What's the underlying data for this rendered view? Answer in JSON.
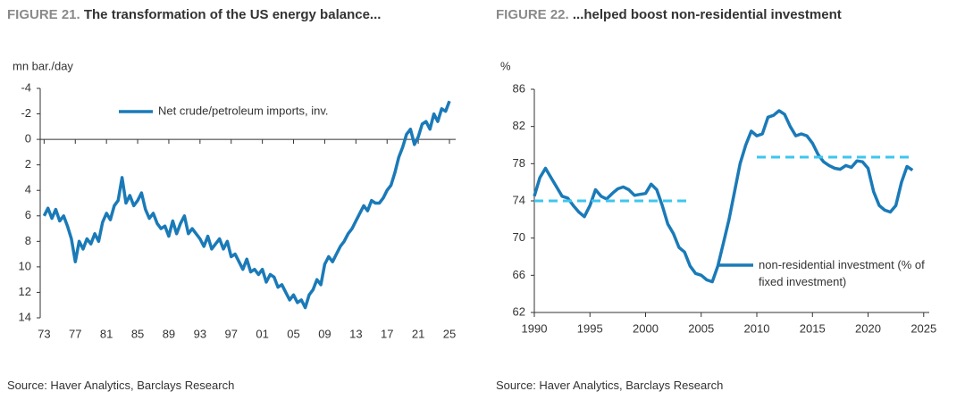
{
  "chart_data": [
    {
      "type": "line",
      "figure_label": "FIGURE 21.",
      "title": "The transformation of the US energy balance...",
      "y_label": "mn bar./day",
      "source": "Source: Haver Analytics, Barclays Research",
      "inverted": true,
      "legend": "upper-left",
      "xlim": [
        1972.5,
        2025.8
      ],
      "xticks": [
        {
          "value": 1973,
          "label": "73"
        },
        {
          "value": 1977,
          "label": "77"
        },
        {
          "value": 1981,
          "label": "81"
        },
        {
          "value": 1985,
          "label": "85"
        },
        {
          "value": 1989,
          "label": "89"
        },
        {
          "value": 1993,
          "label": "93"
        },
        {
          "value": 1997,
          "label": "97"
        },
        {
          "value": 2001,
          "label": "01"
        },
        {
          "value": 2005,
          "label": "05"
        },
        {
          "value": 2009,
          "label": "09"
        },
        {
          "value": 2013,
          "label": "13"
        },
        {
          "value": 2017,
          "label": "17"
        },
        {
          "value": 2021,
          "label": "21"
        },
        {
          "value": 2025,
          "label": "25"
        }
      ],
      "ylim": [
        -4,
        14
      ],
      "yticks": [
        -4,
        -2,
        0,
        2,
        4,
        6,
        8,
        10,
        12,
        14
      ],
      "series": [
        {
          "name": "Net crude/petroleum imports, inv.",
          "color": "#1a7ab8",
          "dash": false,
          "x": [
            1973,
            1973.5,
            1974,
            1974.5,
            1975,
            1975.5,
            1976,
            1976.5,
            1977,
            1977.5,
            1978,
            1978.5,
            1979,
            1979.5,
            1980,
            1980.5,
            1981,
            1981.5,
            1982,
            1982.5,
            1983,
            1983.5,
            1984,
            1984.5,
            1985,
            1985.5,
            1986,
            1986.5,
            1987,
            1987.5,
            1988,
            1988.5,
            1989,
            1989.5,
            1990,
            1990.5,
            1991,
            1991.5,
            1992,
            1992.5,
            1993,
            1993.5,
            1994,
            1994.5,
            1995,
            1995.5,
            1996,
            1996.5,
            1997,
            1997.5,
            1998,
            1998.5,
            1999,
            1999.5,
            2000,
            2000.5,
            2001,
            2001.5,
            2002,
            2002.5,
            2003,
            2003.5,
            2004,
            2004.5,
            2005,
            2005.5,
            2006,
            2006.5,
            2007,
            2007.5,
            2008,
            2008.5,
            2009,
            2009.5,
            2010,
            2010.5,
            2011,
            2011.5,
            2012,
            2012.5,
            2013,
            2013.5,
            2014,
            2014.5,
            2015,
            2015.5,
            2016,
            2016.5,
            2017,
            2017.5,
            2018,
            2018.5,
            2019,
            2019.5,
            2020,
            2020.5,
            2021,
            2021.5,
            2022,
            2022.5,
            2023,
            2023.5,
            2024,
            2024.5,
            2025
          ],
          "values": [
            6.0,
            5.4,
            6.2,
            5.5,
            6.4,
            6.0,
            6.8,
            7.8,
            9.6,
            8.0,
            8.6,
            7.8,
            8.2,
            7.4,
            8.0,
            6.5,
            5.8,
            6.3,
            5.2,
            4.8,
            3.0,
            5.0,
            4.4,
            5.2,
            4.8,
            4.2,
            5.5,
            6.2,
            5.8,
            6.6,
            7.0,
            6.8,
            7.6,
            6.4,
            7.4,
            6.6,
            6.0,
            7.4,
            7.0,
            7.4,
            7.8,
            8.4,
            7.6,
            8.6,
            8.2,
            7.8,
            8.6,
            8.0,
            9.2,
            9.0,
            9.6,
            10.2,
            9.4,
            10.4,
            10.2,
            10.6,
            10.2,
            11.2,
            10.6,
            10.8,
            11.6,
            11.4,
            12.0,
            12.6,
            12.2,
            12.8,
            12.6,
            13.2,
            12.2,
            11.8,
            11.0,
            11.4,
            9.8,
            9.2,
            9.6,
            9.0,
            8.4,
            8.0,
            7.4,
            7.0,
            6.4,
            5.8,
            5.2,
            5.6,
            4.8,
            5.0,
            5.0,
            4.6,
            4.0,
            3.6,
            2.6,
            1.4,
            0.6,
            -0.4,
            -0.8,
            0.4,
            -0.2,
            -1.2,
            -1.4,
            -0.8,
            -2.0,
            -1.4,
            -2.4,
            -2.2,
            -3.0
          ]
        }
      ]
    },
    {
      "type": "line",
      "figure_label": "FIGURE 22.",
      "title": "...helped boost non-residential investment",
      "y_label": "%",
      "source": "Source: Haver Analytics, Barclays Research",
      "inverted": false,
      "legend": "lower-right",
      "xlim": [
        1990,
        2025.5
      ],
      "xticks": [
        1990,
        1995,
        2000,
        2005,
        2010,
        2015,
        2020,
        2025
      ],
      "ylim": [
        62,
        86
      ],
      "yticks": [
        62,
        66,
        70,
        74,
        78,
        82,
        86
      ],
      "series": [
        {
          "name": "non-residential investment (% of fixed investment)",
          "color": "#1a7ab8",
          "dash": false,
          "x": [
            1990,
            1990.5,
            1991,
            1991.5,
            1992,
            1992.5,
            1993,
            1993.5,
            1994,
            1994.5,
            1995,
            1995.5,
            1996,
            1996.5,
            1997,
            1997.5,
            1998,
            1998.5,
            1999,
            1999.5,
            2000,
            2000.5,
            2001,
            2001.5,
            2002,
            2002.5,
            2003,
            2003.5,
            2004,
            2004.5,
            2005,
            2005.5,
            2006,
            2006.5,
            2007,
            2007.5,
            2008,
            2008.5,
            2009,
            2009.5,
            2010,
            2010.5,
            2011,
            2011.5,
            2012,
            2012.5,
            2013,
            2013.5,
            2014,
            2014.5,
            2015,
            2015.5,
            2016,
            2016.5,
            2017,
            2017.5,
            2018,
            2018.5,
            2019,
            2019.5,
            2020,
            2020.5,
            2021,
            2021.5,
            2022,
            2022.5,
            2023,
            2023.5,
            2024
          ],
          "values": [
            74.5,
            76.5,
            77.5,
            76.5,
            75.5,
            74.5,
            74.3,
            73.5,
            72.8,
            72.3,
            73.5,
            75.2,
            74.5,
            74.2,
            74.8,
            75.3,
            75.5,
            75.2,
            74.6,
            74.7,
            74.8,
            75.8,
            75.2,
            73.5,
            71.5,
            70.5,
            69.0,
            68.5,
            67.0,
            66.2,
            66.0,
            65.5,
            65.3,
            67.0,
            69.5,
            72.0,
            75.0,
            78.0,
            80.0,
            81.5,
            81.0,
            81.2,
            83.0,
            83.2,
            83.7,
            83.3,
            82.0,
            81.0,
            81.2,
            81.0,
            80.2,
            79.0,
            78.2,
            77.8,
            77.5,
            77.4,
            77.8,
            77.6,
            78.3,
            78.2,
            77.5,
            75.0,
            73.5,
            73.0,
            72.8,
            73.5,
            76.0,
            77.7,
            77.3
          ]
        },
        {
          "color": "#3ec6ee",
          "dash": true,
          "x": [
            1990,
            2004
          ],
          "values": [
            74,
            74
          ]
        },
        {
          "color": "#3ec6ee",
          "dash": true,
          "x": [
            2010,
            2024
          ],
          "values": [
            78.7,
            78.7
          ]
        }
      ]
    }
  ]
}
